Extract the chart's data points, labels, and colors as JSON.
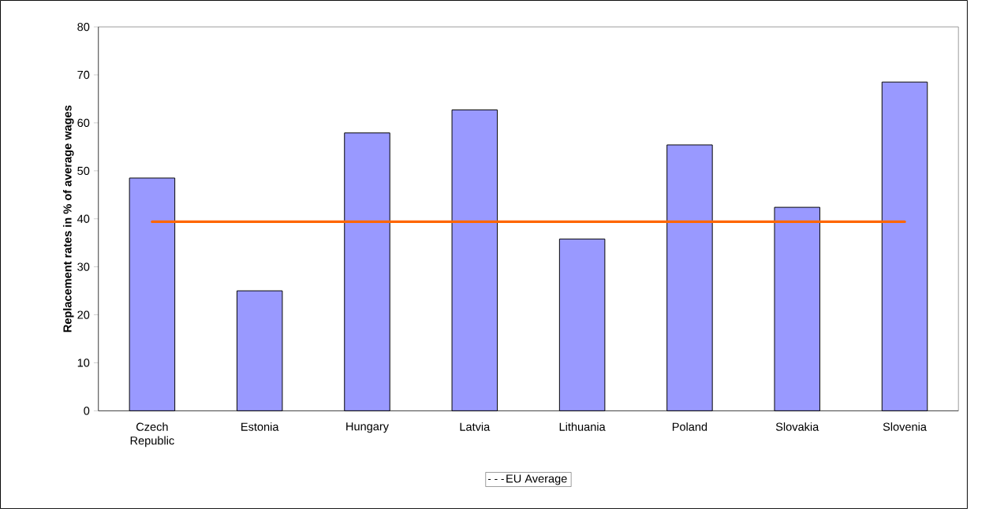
{
  "chart_data": {
    "type": "bar",
    "ylabel": "Replacement rates in % of average wages",
    "categories": [
      "Czech Republic",
      "Estonia",
      "Hungary",
      "Latvia",
      "Lithuania",
      "Poland",
      "Slovakia",
      "Slovenia"
    ],
    "series": [
      {
        "color": "#9999ff",
        "values": [
          48.5,
          25.0,
          57.9,
          62.7,
          35.8,
          55.4,
          42.4,
          68.5
        ]
      },
      {
        "type": "line",
        "name": "EU Average",
        "color": "#ff6600",
        "values": [
          39.4,
          39.4,
          39.4,
          39.4,
          39.4,
          39.4,
          39.4,
          39.4
        ]
      }
    ],
    "ylim": [
      0,
      80
    ],
    "yticks": [
      0,
      10,
      20,
      30,
      40,
      50,
      60,
      70,
      80
    ],
    "legend": "bottom"
  }
}
